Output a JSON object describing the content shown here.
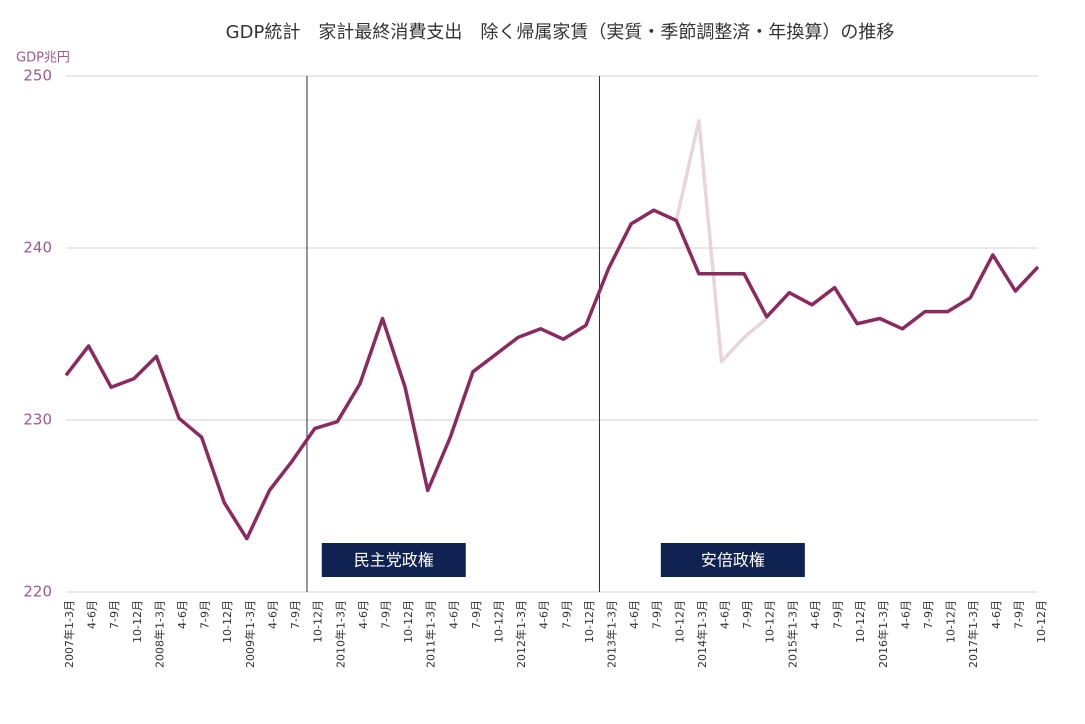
{
  "chart_data": {
    "type": "line",
    "title": "GDP統計　家計最終消費支出　除く帰属家賃（実質・季節調整済・年換算）の推移",
    "y_label": "GDP兆円",
    "categories": [
      "2007年1-3月",
      "4-6月",
      "7-9月",
      "10-12月",
      "2008年1-3月",
      "4-6月",
      "7-9月",
      "10-12月",
      "2009年1-3月",
      "4-6月",
      "7-9月",
      "10-12月",
      "2010年1-3月",
      "4-6月",
      "7-9月",
      "10-12月",
      "2011年1-3月",
      "4-6月",
      "7-9月",
      "10-12月",
      "2012年1-3月",
      "4-6月",
      "7-9月",
      "10-12月",
      "2013年1-3月",
      "4-6月",
      "7-9月",
      "10-12月",
      "2014年1-3月",
      "4-6月",
      "7-9月",
      "10-12月",
      "2015年1-3月",
      "4-6月",
      "7-9月",
      "10-12月",
      "2016年1-3月",
      "4-6月",
      "7-9月",
      "10-12月",
      "2017年1-3月",
      "4-6月",
      "7-9月",
      "10-12月"
    ],
    "series": [
      {
        "color": "#e8d5dc",
        "values": [
          null,
          null,
          null,
          null,
          null,
          null,
          null,
          null,
          null,
          null,
          null,
          null,
          null,
          null,
          null,
          null,
          null,
          null,
          null,
          null,
          null,
          null,
          null,
          null,
          null,
          null,
          null,
          241.6,
          247.4,
          233.4,
          234.8,
          235.9,
          null,
          null,
          null,
          null,
          null,
          null,
          null,
          null,
          null,
          null,
          null,
          null
        ]
      },
      {
        "color": "#8b2a5e",
        "values": [
          232.6,
          234.3,
          231.9,
          232.4,
          233.7,
          230.1,
          229.0,
          225.2,
          223.1,
          225.9,
          227.6,
          229.5,
          229.9,
          232.1,
          235.9,
          231.9,
          225.9,
          229.0,
          232.8,
          233.8,
          234.8,
          235.3,
          234.7,
          235.5,
          238.8,
          241.4,
          242.2,
          241.6,
          238.5,
          238.5,
          238.5,
          236.0,
          237.4,
          236.7,
          237.7,
          235.6,
          235.9,
          235.3,
          236.3,
          236.3,
          237.1,
          239.6,
          237.5,
          238.9
        ]
      }
    ],
    "ylim": [
      220,
      250
    ],
    "yticks": [
      220,
      230,
      240,
      250
    ],
    "grid": true,
    "annotations": [
      "民主党政権",
      "安倍政権"
    ]
  }
}
